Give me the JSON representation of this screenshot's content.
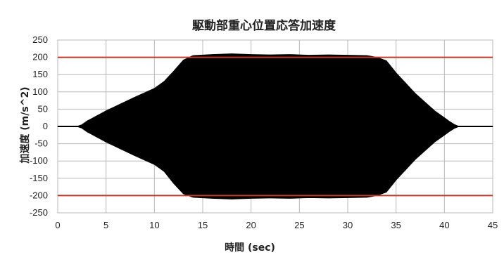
{
  "chart_data": {
    "type": "area",
    "title": "駆動部重心位置応答加速度",
    "xlabel": "時間 (sec)",
    "ylabel": "加速度 (m/s^2)",
    "xlim": [
      0,
      45
    ],
    "ylim": [
      -250,
      250
    ],
    "x_ticks": [
      0,
      5,
      10,
      15,
      20,
      25,
      30,
      35,
      40,
      45
    ],
    "y_ticks": [
      250,
      200,
      150,
      100,
      50,
      0,
      -50,
      -100,
      -150,
      -200,
      -250
    ],
    "grid": true,
    "legend": "none",
    "series": [
      {
        "kind": "envelope",
        "color": "#000000",
        "x": [
          0,
          2,
          2.5,
          3,
          5,
          8,
          10,
          11,
          12,
          13,
          14,
          16,
          18,
          20,
          22,
          24,
          26,
          28,
          30,
          32,
          33,
          34,
          35,
          37,
          39,
          40,
          40.5,
          41,
          41.5,
          42,
          45
        ],
        "upper": [
          0,
          0,
          5,
          15,
          45,
          85,
          110,
          130,
          160,
          192,
          205,
          208,
          210,
          208,
          207,
          208,
          206,
          207,
          206,
          205,
          200,
          190,
          155,
          95,
          45,
          25,
          15,
          6,
          0,
          0,
          0
        ],
        "lower": [
          0,
          0,
          -5,
          -15,
          -45,
          -85,
          -110,
          -130,
          -165,
          -195,
          -205,
          -208,
          -210,
          -208,
          -207,
          -208,
          -206,
          -207,
          -206,
          -205,
          -200,
          -190,
          -155,
          -95,
          -45,
          -25,
          -15,
          -6,
          0,
          0,
          0
        ]
      }
    ],
    "reference_lines": [
      {
        "y": 200,
        "color": "#c0392b"
      },
      {
        "y": -200,
        "color": "#c0392b"
      }
    ]
  }
}
